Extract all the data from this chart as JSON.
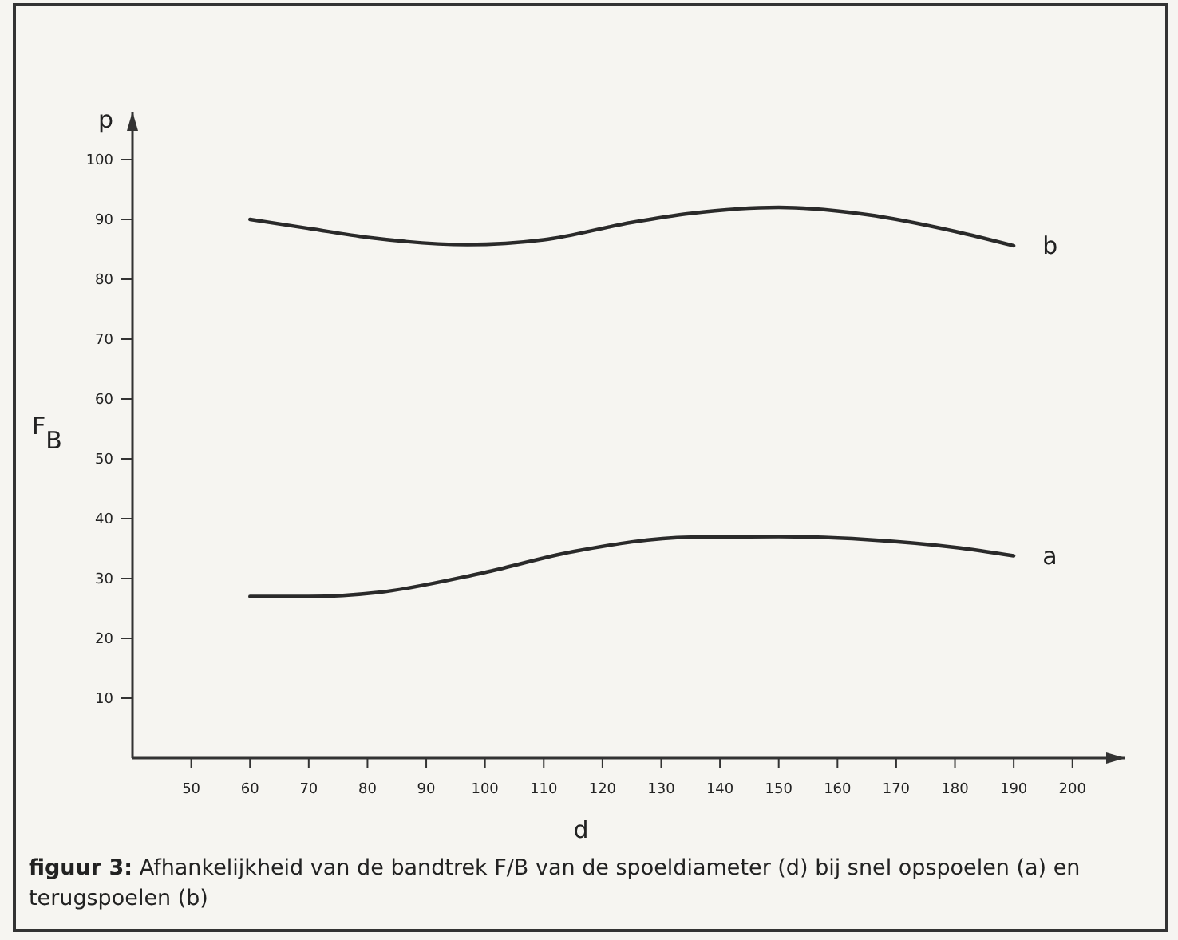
{
  "chart_data": {
    "type": "line",
    "ylabel": "F$_{B}$",
    "xlabel": "d",
    "annotations": [
      "p",
      "figuur 3: Afhankelijkheid van de bandtrek F/B van de spoeldiameter (d) bij snel opspoelen (a) en terugspoelen (b)"
    ],
    "xlim": [
      40,
      209
    ],
    "ylim": [
      0,
      108
    ],
    "xticks": [
      50,
      60,
      70,
      80,
      90,
      100,
      110,
      120,
      130,
      140,
      150,
      160,
      170,
      180,
      190,
      200
    ],
    "yticks": [
      10,
      20,
      30,
      40,
      50,
      60,
      70,
      80,
      90,
      100
    ],
    "grid": false,
    "marker": "none",
    "line_style": "solid",
    "series": [
      {
        "name": "b",
        "color": "#2a2a2a",
        "x": [
          60,
          70,
          80,
          97,
          110,
          125,
          135,
          150,
          165,
          180,
          190
        ],
        "values": [
          90,
          88.5,
          87,
          85.8,
          86.6,
          89.5,
          91,
          92,
          90.8,
          88,
          85.6
        ]
      },
      {
        "name": "a",
        "color": "#2a2a2a",
        "x": [
          60,
          70,
          82,
          99,
          115,
          135,
          150,
          165,
          180,
          190
        ],
        "values": [
          27,
          27,
          27.7,
          30.8,
          34.5,
          36.9,
          37,
          36.5,
          35.2,
          33.8
        ]
      }
    ]
  }
}
